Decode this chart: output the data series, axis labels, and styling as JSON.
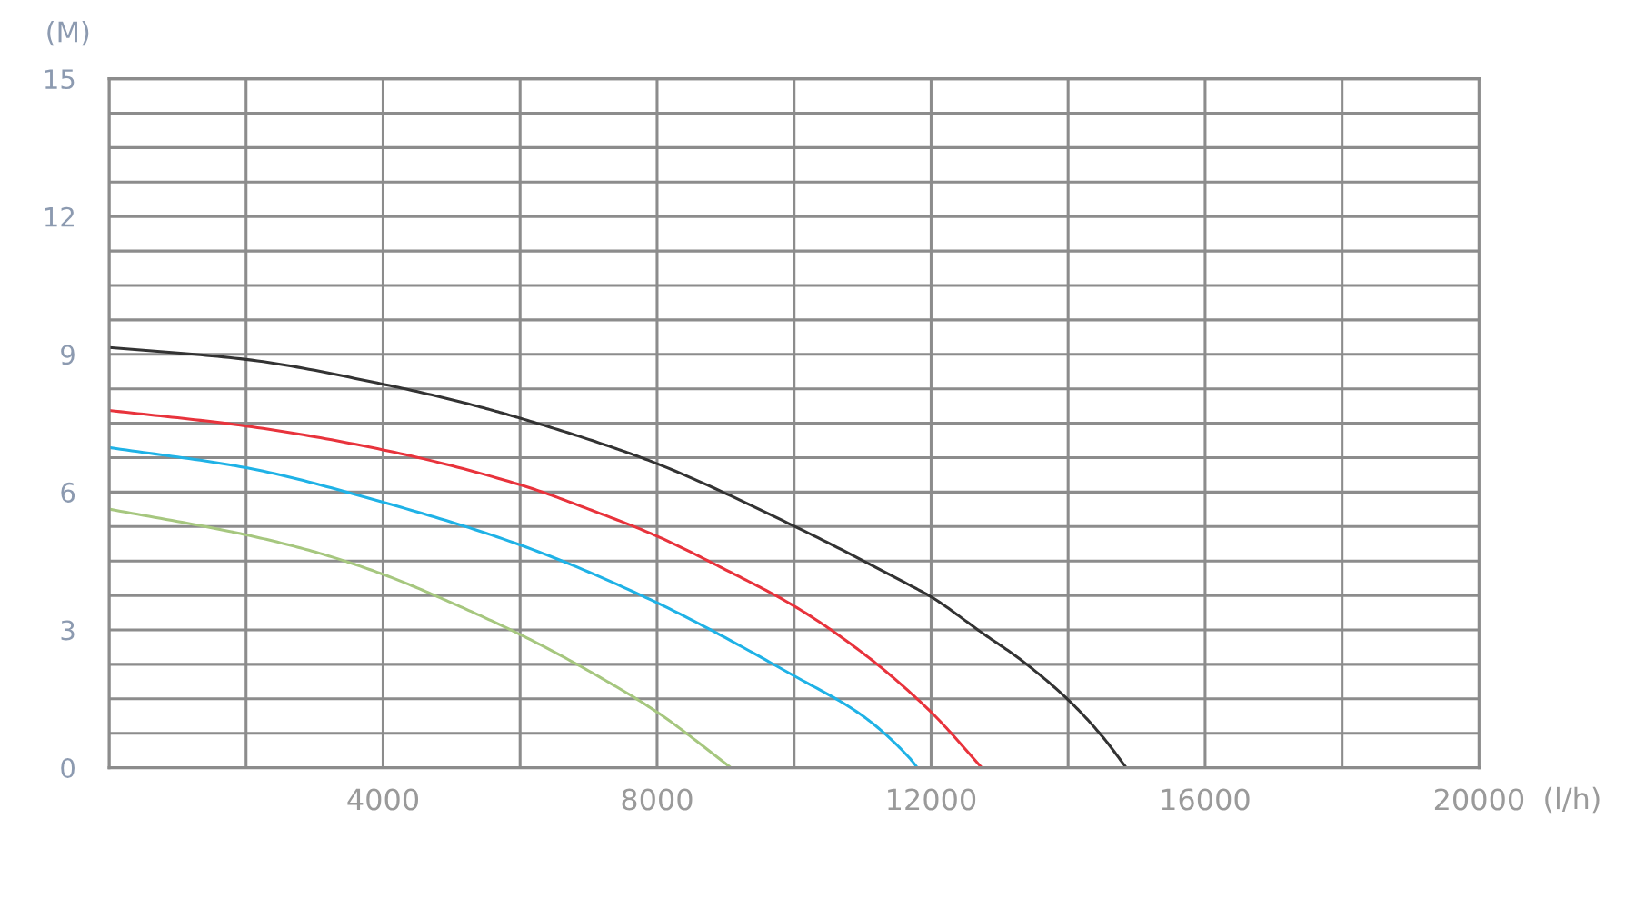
{
  "chart_data": {
    "type": "line",
    "xlabel": "(l/h)",
    "ylabel": "(M)",
    "xlim": [
      0,
      20000
    ],
    "ylim": [
      0,
      15
    ],
    "xticks": [
      {
        "value": 0,
        "label": null
      },
      {
        "value": 2000,
        "label": null
      },
      4000,
      {
        "value": 6000,
        "label": null
      },
      8000,
      {
        "value": 10000,
        "label": null
      },
      12000,
      {
        "value": 14000,
        "label": null
      },
      16000,
      {
        "value": 18000,
        "label": null
      },
      20000
    ],
    "yticks": [
      0,
      {
        "value": 0.75,
        "label": null
      },
      {
        "value": 1.5,
        "label": null
      },
      {
        "value": 2.25,
        "label": null
      },
      3,
      {
        "value": 3.75,
        "label": null
      },
      {
        "value": 4.5,
        "label": null
      },
      {
        "value": 5.25,
        "label": null
      },
      6,
      {
        "value": 6.75,
        "label": null
      },
      {
        "value": 7.5,
        "label": null
      },
      {
        "value": 8.25,
        "label": null
      },
      9,
      {
        "value": 9.75,
        "label": null
      },
      {
        "value": 10.5,
        "label": null
      },
      {
        "value": 11.25,
        "label": null
      },
      12,
      {
        "value": 12.75,
        "label": null
      },
      {
        "value": 13.5,
        "label": null
      },
      {
        "value": 14.25,
        "label": null
      },
      15
    ],
    "grid": true,
    "line_style": "solid",
    "series": [
      {
        "color": "#a6c77f",
        "x": [
          0,
          2000,
          3000,
          4000,
          5000,
          6000,
          7200,
          8000,
          9080
        ],
        "values": [
          5.63,
          5.07,
          4.7,
          4.21,
          3.59,
          2.9,
          1.94,
          1.21,
          0
        ]
      },
      {
        "color": "#1fb2e6",
        "x": [
          0,
          2000,
          4000,
          6000,
          8000,
          10000,
          11000,
          11680,
          11800
        ],
        "values": [
          6.97,
          6.53,
          5.78,
          4.85,
          3.59,
          2.0,
          1.13,
          0.22,
          0
        ]
      },
      {
        "color": "#e8333c",
        "x": [
          0,
          2000,
          4000,
          6000,
          7000,
          8000,
          9000,
          10000,
          11000,
          12000,
          12740
        ],
        "values": [
          7.78,
          7.44,
          6.92,
          6.16,
          5.63,
          5.04,
          4.31,
          3.52,
          2.5,
          1.21,
          0
        ]
      },
      {
        "color": "#333333",
        "x": [
          0,
          2000,
          4000,
          5300,
          6000,
          7200,
          8000,
          10000,
          11680,
          12000,
          12750,
          13300,
          14000,
          14500,
          14850
        ],
        "values": [
          9.15,
          8.89,
          8.35,
          7.9,
          7.61,
          7.05,
          6.62,
          5.26,
          3.98,
          3.72,
          2.93,
          2.36,
          1.48,
          0.68,
          0
        ]
      }
    ]
  }
}
